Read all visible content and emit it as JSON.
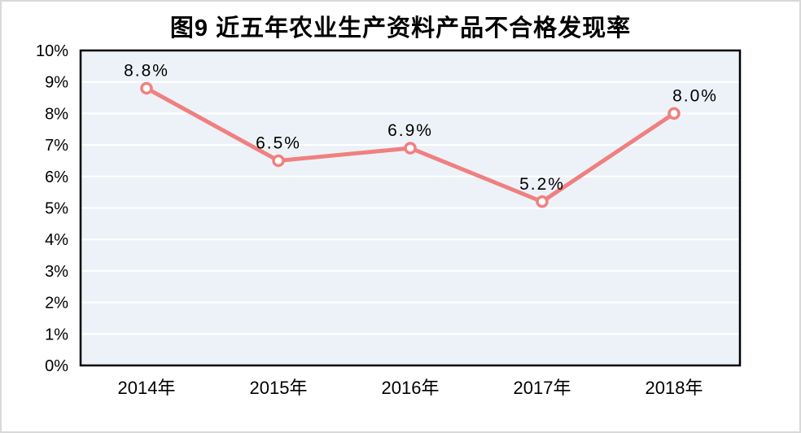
{
  "chart_data": {
    "type": "line",
    "title": "图9 近五年农业生产资料产品不合格发现率",
    "categories": [
      "2014年",
      "2015年",
      "2016年",
      "2017年",
      "2018年"
    ],
    "values": [
      8.8,
      6.5,
      6.9,
      5.2,
      8.0
    ],
    "point_labels": [
      "8.8%",
      "6.5%",
      "6.9%",
      "5.2%",
      "8.0%"
    ],
    "y_ticks": [
      "0%",
      "1%",
      "2%",
      "3%",
      "4%",
      "5%",
      "6%",
      "7%",
      "8%",
      "9%",
      "10%"
    ],
    "ylim": [
      0,
      10
    ],
    "xlabel": "",
    "ylabel": "",
    "grid": "horizontal",
    "legend": "none",
    "colors": {
      "line": "#F08080",
      "marker_fill": "#FFFFFF",
      "plot_background": "#EDF2F8",
      "gridline": "#FFFFFF",
      "plot_border": "#000000",
      "text": "#000000",
      "outer_border": "#D9D9D9",
      "background": "#FFFFFF"
    }
  }
}
